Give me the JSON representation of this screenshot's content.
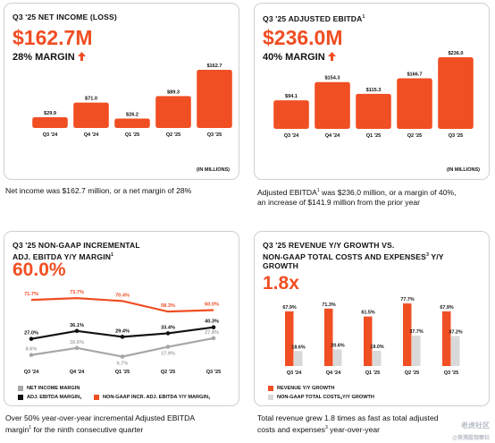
{
  "colors": {
    "orange": "#f04e23",
    "black": "#111111",
    "gray": "#a7a7a7",
    "lightgray": "#d9d9d9"
  },
  "panel1": {
    "title": "Q3 '25 NET INCOME (LOSS)",
    "big": "$162.7M",
    "margin": "28% MARGIN",
    "note": "(IN MILLIONS)",
    "caption": "Net income was $162.7 million, or a net margin of 28%"
  },
  "panel2": {
    "title": "Q3 '25 ADJUSTED EBITDA",
    "title_sup": "1",
    "big": "$236.0M",
    "margin": "40% MARGIN",
    "note": "(IN MILLIONS)",
    "caption_a": "Adjusted EBITDA",
    "caption_sup": "1",
    "caption_b": " was $236.0 million, or a margin of 40%,",
    "caption_c": "an increase of $141.9 million from the prior year"
  },
  "panel3": {
    "title_l1": "Q3 '25 NON-GAAP INCREMENTAL",
    "title_l2": "ADJ. EBITDA Y/Y MARGIN",
    "title_sup": "1",
    "big": "60.0%",
    "legend": [
      "NET INCOME MARGIN",
      "ADJ. EBITDA MARGIN",
      "NON-GAAP INCR. ADJ. EBITDA Y/Y MARGIN"
    ],
    "legend_sup": "1",
    "caption_l1": "Over 50% year-over-year incremental Adjusted EBITDA",
    "caption_l2a": "margin",
    "caption_sup": "1",
    "caption_l2b": " for the ninth consecutive quarter"
  },
  "panel4": {
    "title_l1": "Q3 '25 REVENUE Y/Y GROWTH VS.",
    "title_l2": "NON-GAAP TOTAL COSTS AND EXPENSES",
    "title_sup": "3",
    "title_l2b": " Y/Y",
    "title_l3": "GROWTH",
    "big": "1.8x",
    "legend": [
      "REVENUE Y/Y GROWTH",
      "NON-GAAP TOTAL COSTS"
    ],
    "legend_sup": "3",
    "legend_tail": " Y/Y GROWTH",
    "caption_l1": "Total revenue grew 1.8 times as fast as total adjusted",
    "caption_l2a": "costs and expenses",
    "caption_sup": "3",
    "caption_l2b": " year-over-year"
  },
  "watermark": "老虎社区",
  "watermark2": "@美港股观察社",
  "chart_data": [
    {
      "type": "bar",
      "title": "Q3 '25 NET INCOME (LOSS)",
      "categories": [
        "Q3 '24",
        "Q4 '24",
        "Q1 '25",
        "Q2 '25",
        "Q3 '25"
      ],
      "values": [
        29.9,
        71.0,
        26.2,
        89.3,
        162.7
      ],
      "labels": [
        "$29.9",
        "$71.0",
        "$26.2",
        "$89.3",
        "$162.7"
      ],
      "unit": "(IN MILLIONS)"
    },
    {
      "type": "bar",
      "title": "Q3 '25 ADJUSTED EBITDA",
      "categories": [
        "Q3 '24",
        "Q4 '24",
        "Q1 '25",
        "Q2 '25",
        "Q3 '25"
      ],
      "values": [
        94.1,
        154.3,
        115.3,
        166.7,
        236.0
      ],
      "labels": [
        "$94.1",
        "$154.3",
        "$115.3",
        "$166.7",
        "$236.0"
      ],
      "unit": "(IN MILLIONS)"
    },
    {
      "type": "line",
      "title": "Q3 '25 NON-GAAP INCREMENTAL ADJ. EBITDA Y/Y MARGIN",
      "categories": [
        "Q3 '24",
        "Q4 '24",
        "Q1 '25",
        "Q2 '25",
        "Q3 '25"
      ],
      "series": [
        {
          "name": "NET INCOME MARGIN",
          "values": [
            8.6,
            16.6,
            6.7,
            17.9,
            27.8
          ],
          "labels": [
            "8.6%",
            "16.6%",
            "6.7%",
            "17.9%",
            "27.8%"
          ]
        },
        {
          "name": "ADJ. EBITDA MARGIN",
          "values": [
            27.0,
            36.1,
            29.4,
            33.4,
            40.3
          ],
          "labels": [
            "27.0%",
            "36.1%",
            "29.4%",
            "33.4%",
            "40.3%"
          ]
        },
        {
          "name": "NON-GAAP INCR. ADJ. EBITDA Y/Y MARGIN",
          "values": [
            71.7,
            73.7,
            70.4,
            58.3,
            60.0
          ],
          "labels": [
            "71.7%",
            "73.7%",
            "70.4%",
            "58.3%",
            "60.0%"
          ]
        }
      ]
    },
    {
      "type": "bar",
      "title": "Q3 '25 REVENUE Y/Y GROWTH VS. NON-GAAP TOTAL COSTS AND EXPENSES Y/Y GROWTH",
      "categories": [
        "Q3 '24",
        "Q4 '24",
        "Q1 '25",
        "Q2 '25",
        "Q3 '25"
      ],
      "series": [
        {
          "name": "REVENUE Y/Y GROWTH",
          "values": [
            67.9,
            71.3,
            61.5,
            77.7,
            67.9
          ],
          "labels": [
            "67.9%",
            "71.3%",
            "61.5%",
            "77.7%",
            "67.9%"
          ]
        },
        {
          "name": "NON-GAAP TOTAL COSTS Y/Y GROWTH",
          "values": [
            18.6,
            20.6,
            19.0,
            37.7,
            37.2
          ],
          "labels": [
            "18.6%",
            "20.6%",
            "19.0%",
            "37.7%",
            "37.2%"
          ]
        }
      ]
    }
  ]
}
